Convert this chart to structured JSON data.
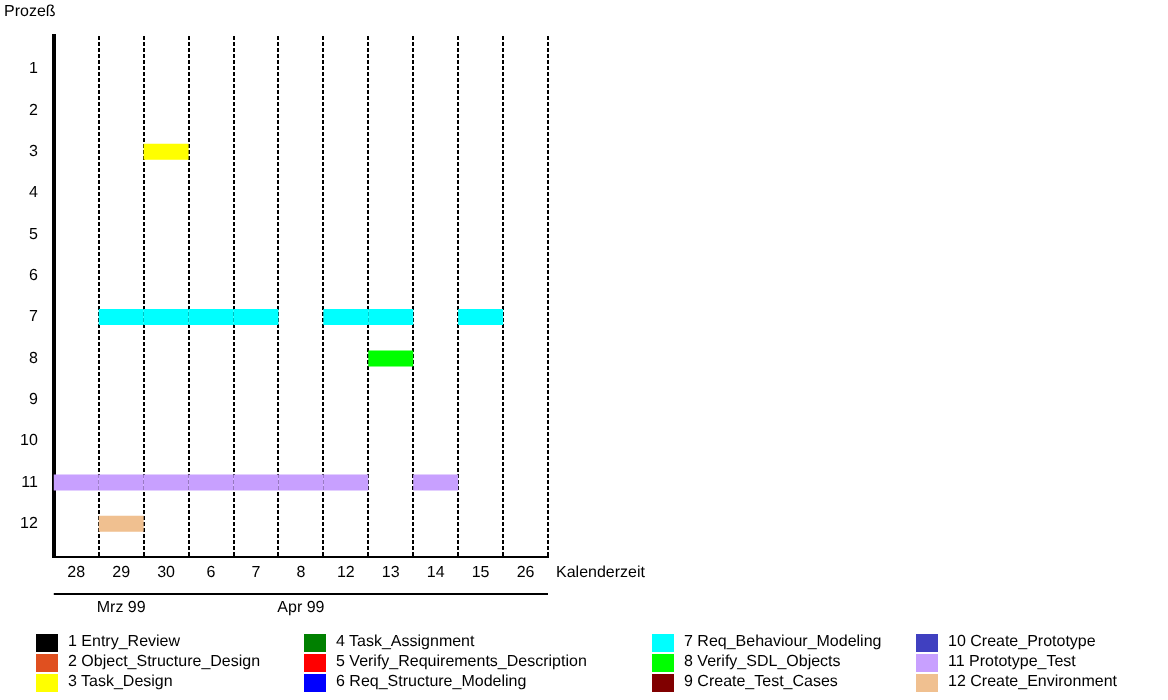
{
  "chart_data": {
    "type": "scatter",
    "ylabel": "Prozeß",
    "xlabel": "Kalenderzeit",
    "marker": "square",
    "categories": [
      "28",
      "29",
      "30",
      "6",
      "7",
      "8",
      "12",
      "13",
      "14",
      "15",
      "26"
    ],
    "ylim": [
      12.8,
      0.2
    ],
    "yticks": [
      1,
      2,
      3,
      4,
      5,
      6,
      7,
      8,
      9,
      10,
      11,
      12
    ],
    "annotations": [
      "Mrz 99",
      "Apr 99"
    ],
    "grid": "x",
    "legend": "bottom",
    "series": [
      {
        "name": "1 Entry_Review",
        "color": "#000000",
        "values": [
          null,
          null,
          null,
          null,
          null,
          null,
          null,
          null,
          null,
          null,
          null
        ]
      },
      {
        "name": "2 Object_Structure_Design",
        "color": "#e05020",
        "values": [
          null,
          null,
          null,
          null,
          null,
          null,
          null,
          null,
          null,
          null,
          null
        ]
      },
      {
        "name": "3 Task_Design",
        "color": "#ffff00",
        "values": [
          null,
          null,
          3,
          null,
          null,
          null,
          null,
          null,
          null,
          null,
          null
        ]
      },
      {
        "name": "4 Task_Assignment",
        "color": "#008000",
        "values": [
          null,
          null,
          null,
          null,
          null,
          null,
          null,
          null,
          null,
          null,
          null
        ]
      },
      {
        "name": "5 Verify_Requirements_Description",
        "color": "#ff0000",
        "values": [
          null,
          null,
          null,
          null,
          null,
          null,
          null,
          null,
          null,
          null,
          null
        ]
      },
      {
        "name": "6 Req_Structure_Modeling",
        "color": "#0000ff",
        "values": [
          null,
          null,
          null,
          null,
          null,
          null,
          null,
          null,
          null,
          null,
          null
        ]
      },
      {
        "name": "7 Req_Behaviour_Modeling",
        "color": "#00ffff",
        "values": [
          null,
          7,
          7,
          7,
          7,
          null,
          7,
          7,
          null,
          7,
          null
        ]
      },
      {
        "name": "8 Verify_SDL_Objects",
        "color": "#00ff00",
        "values": [
          null,
          null,
          null,
          null,
          null,
          null,
          null,
          8,
          null,
          null,
          null
        ]
      },
      {
        "name": "9 Create_Test_Cases",
        "color": "#800000",
        "values": [
          null,
          null,
          null,
          null,
          null,
          null,
          null,
          null,
          null,
          null,
          null
        ]
      },
      {
        "name": "10 Create_Prototype",
        "color": "#4040c0",
        "values": [
          null,
          null,
          null,
          null,
          null,
          null,
          null,
          null,
          null,
          null,
          null
        ]
      },
      {
        "name": "11 Prototype_Test",
        "color": "#c8a0ff",
        "values": [
          11,
          11,
          11,
          11,
          11,
          11,
          11,
          null,
          11,
          null,
          null
        ]
      },
      {
        "name": "12 Create_Environment",
        "color": "#f0c090",
        "values": [
          null,
          12,
          null,
          null,
          null,
          null,
          null,
          null,
          null,
          null,
          null
        ]
      }
    ]
  }
}
